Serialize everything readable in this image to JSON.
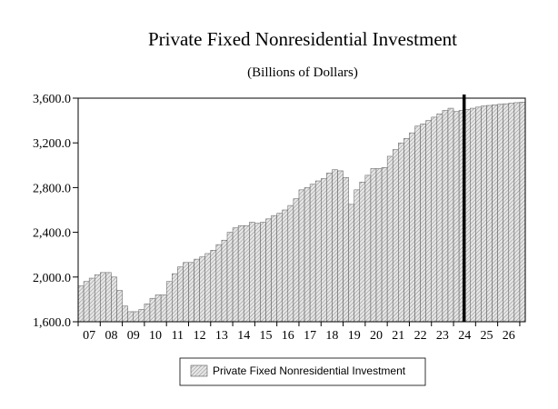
{
  "chart_data": {
    "type": "bar",
    "title": "Private Fixed Nonresidential Investment",
    "subtitle": "(Billions of Dollars)",
    "xlabel": "",
    "ylabel": "",
    "ylim": [
      1600,
      3600
    ],
    "yticks": [
      "1,600.0",
      "2,000.0",
      "2,400.0",
      "2,800.0",
      "3,200.0",
      "3,600.0"
    ],
    "ytick_values": [
      1600,
      2000,
      2400,
      2800,
      3200,
      3600
    ],
    "xticks": [
      "07",
      "08",
      "09",
      "10",
      "11",
      "12",
      "13",
      "14",
      "15",
      "16",
      "17",
      "18",
      "19",
      "20",
      "21",
      "22",
      "23",
      "24",
      "25",
      "26"
    ],
    "start_year": 2007,
    "forecast_start_index": 70,
    "grid": false,
    "legend_position": "bottom-center",
    "series": [
      {
        "name": "Private Fixed Nonresidential Investment",
        "values": [
          1920,
          1960,
          1990,
          2020,
          2040,
          2040,
          2000,
          1880,
          1740,
          1690,
          1690,
          1710,
          1760,
          1810,
          1840,
          1840,
          1960,
          2030,
          2090,
          2130,
          2130,
          2160,
          2180,
          2210,
          2240,
          2290,
          2330,
          2400,
          2440,
          2460,
          2460,
          2490,
          2480,
          2490,
          2520,
          2550,
          2570,
          2600,
          2640,
          2700,
          2780,
          2800,
          2830,
          2860,
          2880,
          2930,
          2960,
          2950,
          2890,
          2650,
          2780,
          2850,
          2910,
          2970,
          2970,
          2980,
          3080,
          3140,
          3200,
          3240,
          3290,
          3350,
          3370,
          3400,
          3430,
          3460,
          3490,
          3510,
          3480,
          3490,
          3500,
          3510,
          3520,
          3530,
          3535,
          3540,
          3545,
          3550,
          3555,
          3560,
          3565
        ]
      }
    ]
  }
}
